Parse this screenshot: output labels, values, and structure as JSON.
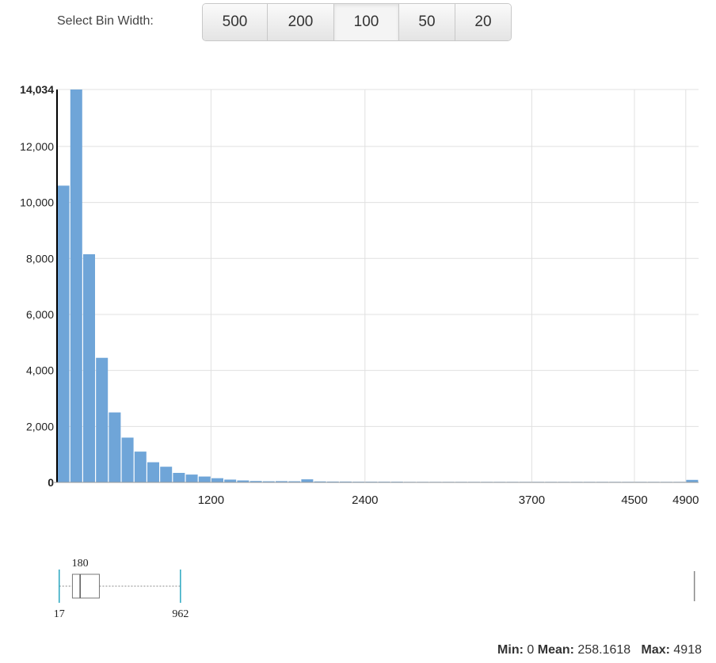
{
  "controls": {
    "label": "Select Bin Width:",
    "bin_widths": [
      "500",
      "200",
      "100",
      "50",
      "20"
    ],
    "selected": "100"
  },
  "summary": {
    "min_label": "Min:",
    "min_value": "0",
    "mean_label": "Mean:",
    "mean_value": "258.1618",
    "max_label": "Max:",
    "max_value": "4918"
  },
  "colors": {
    "bar": "#6fa5d8",
    "grid": "#e0e0e0",
    "whisker": "#2aa7c0"
  },
  "chart_data": {
    "type": "bar",
    "title": "",
    "xlabel": "",
    "ylabel": "",
    "bin_width": 100,
    "xlim": [
      0,
      5000
    ],
    "ylim": [
      0,
      14034
    ],
    "x_ticks": [
      "1200",
      "2400",
      "3700",
      "4500",
      "4900"
    ],
    "y_ticks": [
      "0",
      "2,000",
      "4,000",
      "6,000",
      "8,000",
      "10,000",
      "12,000",
      "14,034"
    ],
    "bin_starts": [
      0,
      100,
      200,
      300,
      400,
      500,
      600,
      700,
      800,
      900,
      1000,
      1100,
      1200,
      1300,
      1400,
      1500,
      1600,
      1700,
      1800,
      1900,
      2000,
      2100,
      2200,
      2300,
      2400,
      2500,
      2600,
      2700,
      2800,
      2900,
      3000,
      3100,
      3200,
      3300,
      3400,
      3500,
      3600,
      3700,
      3800,
      3900,
      4000,
      4100,
      4200,
      4300,
      4400,
      4500,
      4600,
      4700,
      4800,
      4900
    ],
    "values": [
      10600,
      14034,
      8150,
      4450,
      2500,
      1600,
      1100,
      720,
      560,
      340,
      280,
      210,
      150,
      100,
      70,
      50,
      40,
      45,
      40,
      110,
      35,
      30,
      30,
      25,
      25,
      25,
      25,
      20,
      20,
      20,
      20,
      20,
      20,
      20,
      20,
      20,
      20,
      20,
      20,
      20,
      20,
      20,
      20,
      20,
      20,
      20,
      20,
      20,
      20,
      90
    ],
    "grid": true,
    "legend": "none"
  },
  "boxplot": {
    "whisker_low": 17,
    "q1": 120,
    "median": 180,
    "q3": 330,
    "whisker_high": 962,
    "max": 4918,
    "labels": {
      "median": "180",
      "low": "17",
      "high": "962"
    }
  }
}
